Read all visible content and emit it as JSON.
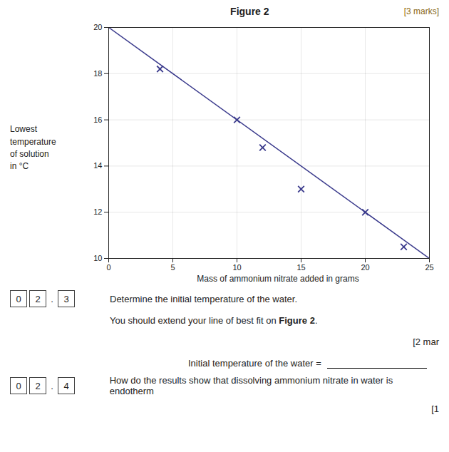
{
  "chart_data": {
    "type": "scatter",
    "title": "Figure 2",
    "xlabel": "Mass of ammonium nitrate added in grams",
    "ylabel": "Lowest\ntemperature\nof solution\nin °C",
    "xlim": [
      0,
      25
    ],
    "ylim": [
      10,
      20
    ],
    "xticks": [
      0,
      5,
      10,
      15,
      20,
      25
    ],
    "yticks": [
      10,
      12,
      14,
      16,
      18,
      20
    ],
    "grid": true,
    "series": [
      {
        "type": "scatter",
        "marker": "x",
        "color": "#3a3a8c",
        "x": [
          4,
          10,
          12,
          15,
          20,
          23
        ],
        "values": [
          18.2,
          16.0,
          14.8,
          13.0,
          12.0,
          10.5
        ]
      },
      {
        "type": "line",
        "color": "#3a3a8c",
        "x": [
          0,
          25
        ],
        "values": [
          20.0,
          10.0
        ]
      }
    ],
    "annotations": [
      [
        "[3 marks]"
      ],
      [
        "0",
        "2",
        ".",
        "3",
        "Determine the initial temperature of the water."
      ],
      [
        "You should extend your line of best fit on ",
        "Figure 2",
        "."
      ],
      [
        "[2 mar"
      ],
      [
        "Initial temperature of the water ="
      ],
      [
        "0",
        "2",
        ".",
        "4",
        "How do the results show that dissolving ammonium nitrate in water is endotherm"
      ],
      [
        "[1"
      ]
    ]
  }
}
